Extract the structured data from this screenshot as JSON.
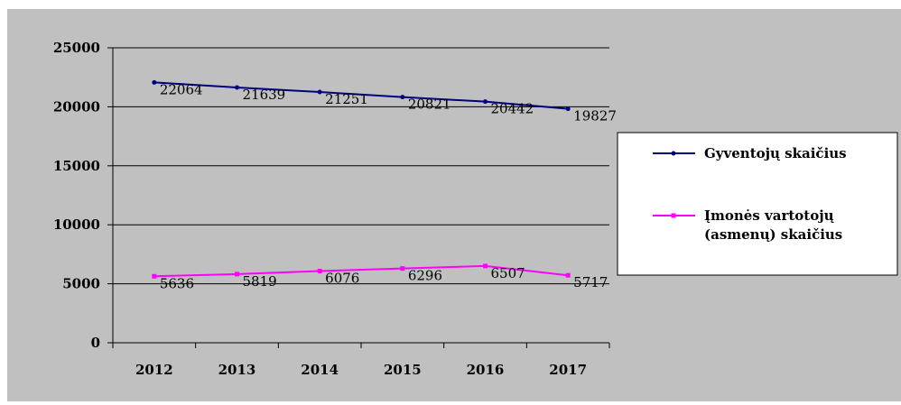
{
  "chart_data": {
    "type": "line",
    "categories": [
      "2012",
      "2013",
      "2014",
      "2015",
      "2016",
      "2017"
    ],
    "series": [
      {
        "name": "Gyventojų skaičius",
        "values": [
          22064,
          21639,
          21251,
          20821,
          20442,
          19827
        ],
        "color": "#000080",
        "labels": [
          "22064",
          "21639",
          "21251",
          "20821",
          "20442",
          "19827"
        ]
      },
      {
        "name_lines": [
          "Įmonės vartotojų",
          "(asmenų) skaičius"
        ],
        "values": [
          5636,
          5819,
          6076,
          6296,
          6507,
          5717
        ],
        "color": "#ff00ff",
        "labels": [
          "5636",
          "5819",
          "6076",
          "6296",
          "6507",
          "5717"
        ]
      }
    ],
    "y_ticks": [
      "0",
      "5000",
      "10000",
      "15000",
      "20000",
      "25000"
    ],
    "ylim": [
      0,
      25000
    ],
    "grid": true,
    "legend": "right"
  }
}
